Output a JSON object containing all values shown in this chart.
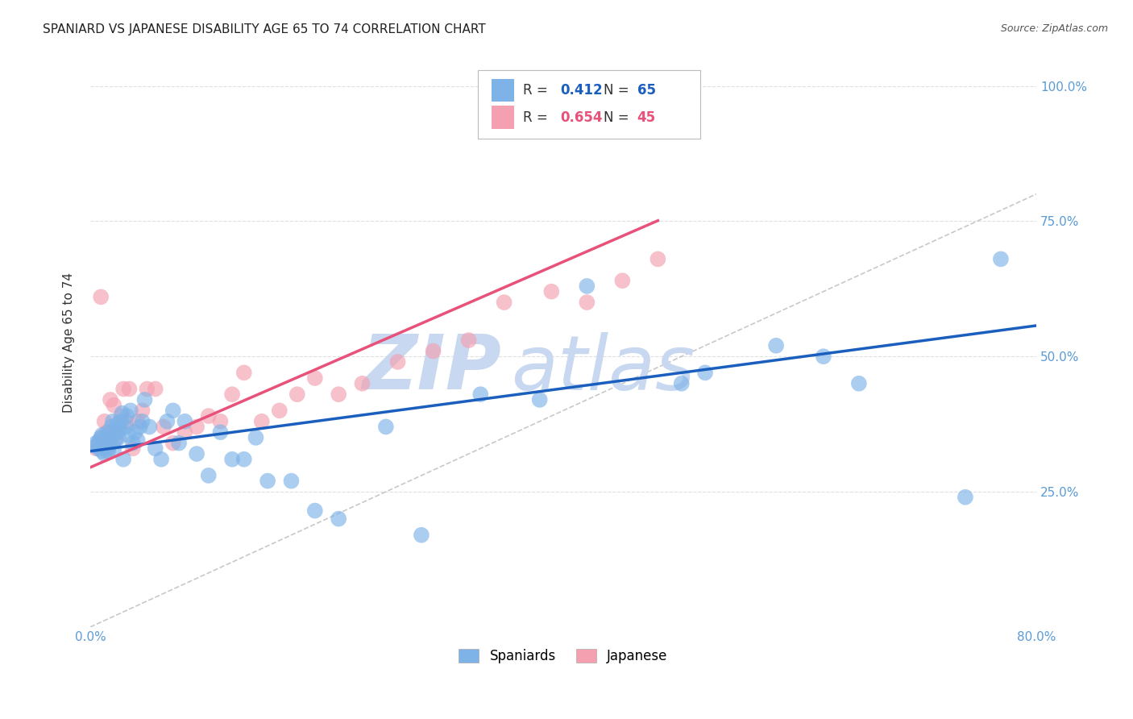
{
  "title": "SPANIARD VS JAPANESE DISABILITY AGE 65 TO 74 CORRELATION CHART",
  "source": "Source: ZipAtlas.com",
  "ylabel_text": "Disability Age 65 to 74",
  "x_min": 0.0,
  "x_max": 0.8,
  "y_min": 0.0,
  "y_max": 1.05,
  "x_ticks": [
    0.0,
    0.2,
    0.4,
    0.6,
    0.8
  ],
  "x_tick_labels": [
    "0.0%",
    "",
    "",
    "",
    "80.0%"
  ],
  "y_ticks": [
    0.25,
    0.5,
    0.75,
    1.0
  ],
  "y_tick_labels": [
    "25.0%",
    "50.0%",
    "75.0%",
    "100.0%"
  ],
  "spaniards_color": "#7EB3E8",
  "japanese_color": "#F4A0B0",
  "regression_blue": "#1B5FBE",
  "regression_pink": "#E8517A",
  "diagonal_color": "#BBBBBB",
  "R_spaniards": 0.412,
  "N_spaniards": 65,
  "R_japanese": 0.654,
  "N_japanese": 45,
  "spaniards_x": [
    0.005,
    0.005,
    0.007,
    0.008,
    0.009,
    0.01,
    0.01,
    0.012,
    0.013,
    0.013,
    0.014,
    0.015,
    0.015,
    0.016,
    0.017,
    0.018,
    0.019,
    0.02,
    0.021,
    0.022,
    0.023,
    0.024,
    0.025,
    0.026,
    0.027,
    0.028,
    0.03,
    0.031,
    0.032,
    0.034,
    0.036,
    0.038,
    0.04,
    0.042,
    0.044,
    0.046,
    0.05,
    0.055,
    0.06,
    0.065,
    0.07,
    0.075,
    0.08,
    0.09,
    0.1,
    0.11,
    0.12,
    0.13,
    0.14,
    0.15,
    0.17,
    0.19,
    0.21,
    0.25,
    0.28,
    0.33,
    0.38,
    0.42,
    0.5,
    0.52,
    0.58,
    0.62,
    0.65,
    0.74,
    0.77
  ],
  "spaniards_y": [
    0.335,
    0.34,
    0.33,
    0.345,
    0.35,
    0.325,
    0.355,
    0.32,
    0.33,
    0.34,
    0.35,
    0.36,
    0.325,
    0.335,
    0.345,
    0.37,
    0.38,
    0.33,
    0.345,
    0.36,
    0.375,
    0.35,
    0.365,
    0.38,
    0.395,
    0.31,
    0.37,
    0.39,
    0.355,
    0.4,
    0.34,
    0.36,
    0.345,
    0.37,
    0.38,
    0.42,
    0.37,
    0.33,
    0.31,
    0.38,
    0.4,
    0.34,
    0.38,
    0.32,
    0.28,
    0.36,
    0.31,
    0.31,
    0.35,
    0.27,
    0.27,
    0.215,
    0.2,
    0.37,
    0.17,
    0.43,
    0.42,
    0.63,
    0.45,
    0.47,
    0.52,
    0.5,
    0.45,
    0.24,
    0.68
  ],
  "japanese_x": [
    0.005,
    0.007,
    0.009,
    0.01,
    0.012,
    0.014,
    0.015,
    0.016,
    0.017,
    0.018,
    0.019,
    0.02,
    0.022,
    0.024,
    0.026,
    0.028,
    0.03,
    0.033,
    0.036,
    0.04,
    0.044,
    0.048,
    0.055,
    0.062,
    0.07,
    0.08,
    0.09,
    0.1,
    0.11,
    0.12,
    0.13,
    0.145,
    0.16,
    0.175,
    0.19,
    0.21,
    0.23,
    0.26,
    0.29,
    0.32,
    0.35,
    0.39,
    0.42,
    0.45,
    0.48
  ],
  "japanese_y": [
    0.33,
    0.34,
    0.61,
    0.35,
    0.38,
    0.36,
    0.33,
    0.34,
    0.42,
    0.35,
    0.36,
    0.41,
    0.35,
    0.37,
    0.39,
    0.44,
    0.38,
    0.44,
    0.33,
    0.38,
    0.4,
    0.44,
    0.44,
    0.37,
    0.34,
    0.36,
    0.37,
    0.39,
    0.38,
    0.43,
    0.47,
    0.38,
    0.4,
    0.43,
    0.46,
    0.43,
    0.45,
    0.49,
    0.51,
    0.53,
    0.6,
    0.62,
    0.6,
    0.64,
    0.68
  ],
  "watermark_line1": "ZIP",
  "watermark_line2": "atlas",
  "watermark_color": "#C8D8F0",
  "background_color": "#FFFFFF",
  "grid_color": "#DDDDDD"
}
